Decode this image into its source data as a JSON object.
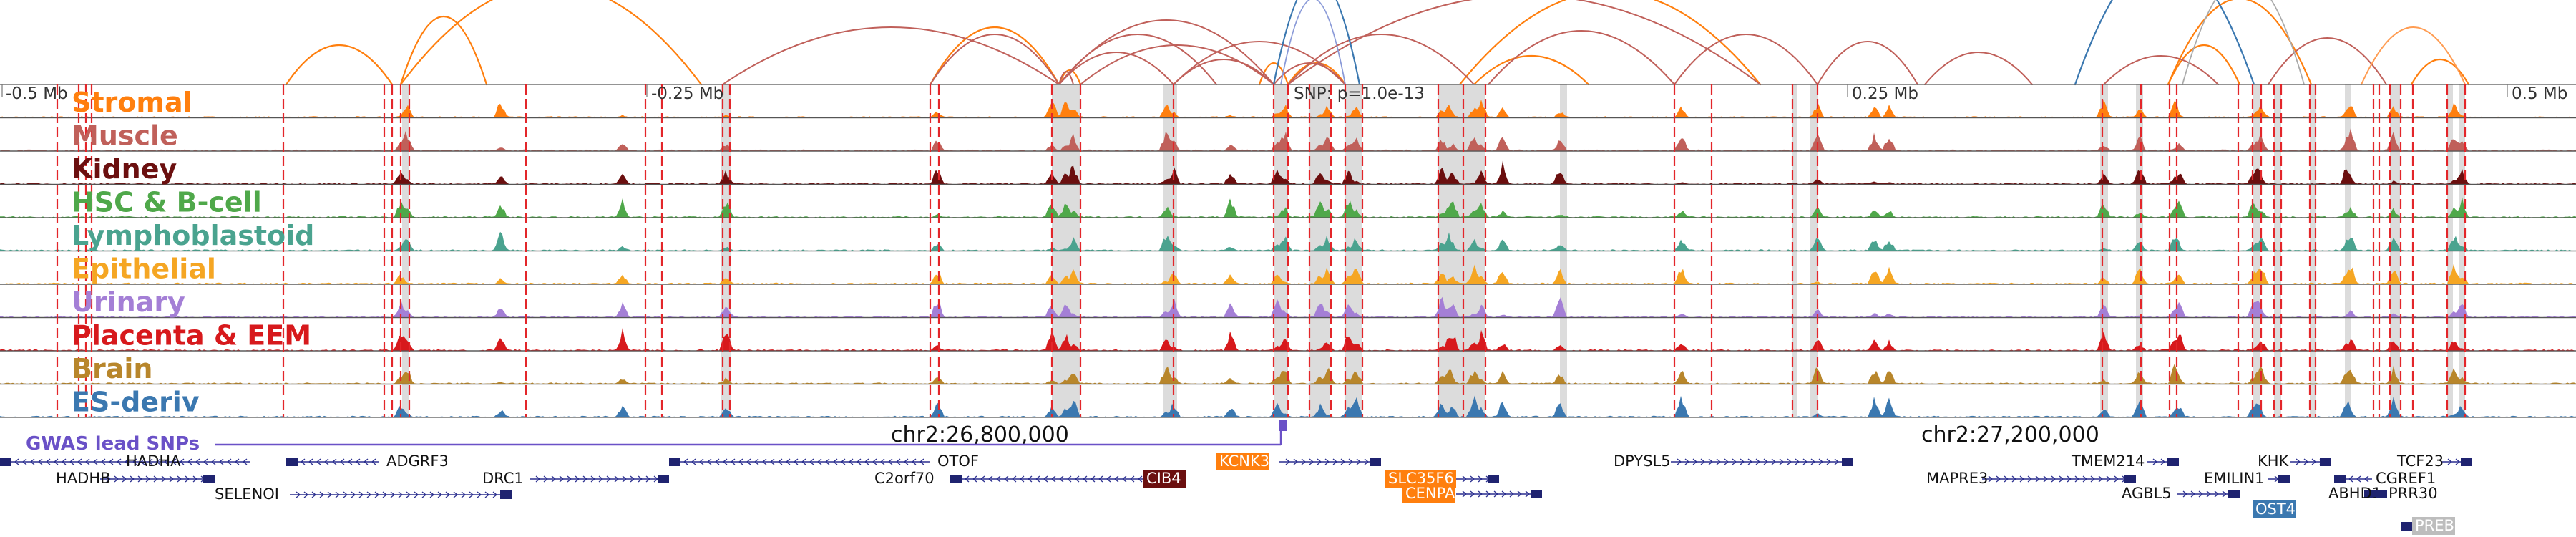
{
  "tracks": [
    {
      "label": "Stromal",
      "color": "#ff7f0e"
    },
    {
      "label": "Muscle",
      "color": "#c0605a"
    },
    {
      "label": "Kidney",
      "color": "#6b0f0f"
    },
    {
      "label": "HSC & B-cell",
      "color": "#4fa84a"
    },
    {
      "label": "Lymphoblastoid",
      "color": "#4aa38f"
    },
    {
      "label": "Epithelial",
      "color": "#f5a623"
    },
    {
      "label": "Urinary",
      "color": "#a47fd6"
    },
    {
      "label": "Placenta & EEM",
      "color": "#d7191c"
    },
    {
      "label": "Brain",
      "color": "#b8862b"
    },
    {
      "label": "ES-deriv",
      "color": "#3b78b0"
    }
  ],
  "axis_ticks": [
    "-0.5 Mb",
    "-0.25 Mb",
    "0.25 Mb",
    "0.5 Mb"
  ],
  "snp_label": "SNP: p=1.0e-13",
  "gwas_label": "GWAS lead SNPs",
  "gwas_color": "#6a51c7",
  "coordinates": [
    "chr2:26,800,000",
    "chr2:27,200,000"
  ],
  "genes": [
    {
      "name": "HADHA",
      "highlight": false
    },
    {
      "name": "HADHB",
      "highlight": false
    },
    {
      "name": "ADGRF3",
      "highlight": false
    },
    {
      "name": "SELENOI",
      "highlight": false
    },
    {
      "name": "DRC1",
      "highlight": false
    },
    {
      "name": "OTOF",
      "highlight": false
    },
    {
      "name": "C2orf70",
      "highlight": false
    },
    {
      "name": "CIB4",
      "highlight": true,
      "color": "#6b0f0f"
    },
    {
      "name": "KCNK3",
      "highlight": true,
      "color": "#ff7f0e"
    },
    {
      "name": "SLC35F6",
      "highlight": true,
      "color": "#ff7f0e"
    },
    {
      "name": "CENPA",
      "highlight": true,
      "color": "#ff7f0e"
    },
    {
      "name": "DPYSL5",
      "highlight": false
    },
    {
      "name": "MAPRE3",
      "highlight": false
    },
    {
      "name": "TMEM214",
      "highlight": false
    },
    {
      "name": "AGBL5",
      "highlight": false
    },
    {
      "name": "EMILIN1",
      "highlight": false
    },
    {
      "name": "KHK",
      "highlight": false
    },
    {
      "name": "OST4",
      "highlight": true,
      "color": "#3b78b0"
    },
    {
      "name": "CGREF1",
      "highlight": false
    },
    {
      "name": "ABHD1",
      "highlight": false
    },
    {
      "name": "TCF23",
      "highlight": false
    },
    {
      "name": "PRR30",
      "highlight": false
    },
    {
      "name": "PREB",
      "highlight": true,
      "color": "#bdbdbd"
    }
  ],
  "colors": {
    "red_marker": "#e3262a",
    "grey_highlight": "#dcdcdc",
    "gene_strand": "#2b2f8f",
    "arc_orange": "#ff7f0e",
    "arc_muscle": "#c0605a",
    "arc_blue": "#3b78b0",
    "arc_grey": "#aaaaaa"
  }
}
